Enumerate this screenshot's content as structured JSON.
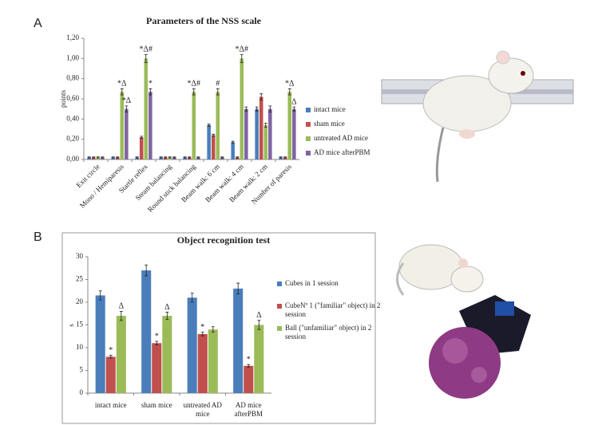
{
  "chart_data": [
    {
      "type": "bar",
      "panel": "A",
      "title": "Parameters of the NSS scale",
      "ylabel": "points",
      "categories": [
        "Exit circle",
        "Mono / Hemiparesis",
        "Startle reflex",
        "Steam balancing",
        "Round stick balancing",
        "Beam walk: 6 cm",
        "Beam walk: 4 cm",
        "Beam walk: 2 cm",
        "Number of paresis"
      ],
      "ylim": [
        0,
        1.2
      ],
      "yticks": [
        {
          "value": 0,
          "label": "0,00"
        },
        {
          "value": 0.2,
          "label": "0,20"
        },
        {
          "value": 0.4,
          "label": "0,40"
        },
        {
          "value": 0.6,
          "label": "0,60"
        },
        {
          "value": 0.8,
          "label": "0,80"
        },
        {
          "value": 1.0,
          "label": "1,00"
        },
        {
          "value": 1.2,
          "label": "1,20"
        }
      ],
      "grid": false,
      "series": [
        {
          "name": "intact mice",
          "color": "#4a7ebb",
          "values": [
            0.02,
            0.02,
            0.02,
            0.02,
            0.02,
            0.34,
            0.17,
            0.5,
            0.02
          ],
          "errors": [
            0.005,
            0.005,
            0.005,
            0.005,
            0.005,
            0.01,
            0.01,
            0.02,
            0.005
          ],
          "markers": [
            null,
            null,
            null,
            null,
            null,
            null,
            null,
            null,
            null
          ]
        },
        {
          "name": "sham mice",
          "color": "#c0504d",
          "values": [
            0.02,
            0.02,
            0.22,
            0.02,
            0.02,
            0.24,
            0.02,
            0.62,
            0.02
          ],
          "errors": [
            0.005,
            0.005,
            0.01,
            0.005,
            0.005,
            0.01,
            0.005,
            0.03,
            0.005
          ],
          "markers": [
            null,
            null,
            null,
            null,
            null,
            null,
            null,
            null,
            null
          ]
        },
        {
          "name": "untreated AD mice",
          "color": "#9bbb59",
          "values": [
            0.02,
            0.67,
            1.0,
            0.02,
            0.67,
            0.67,
            1.0,
            0.34,
            0.67
          ],
          "errors": [
            0.005,
            0.03,
            0.04,
            0.005,
            0.03,
            0.03,
            0.04,
            0.02,
            0.03
          ],
          "markers": [
            null,
            "*Δ",
            "*Δ#",
            null,
            "*Δ#",
            "#",
            "*Δ#",
            null,
            "*Δ"
          ]
        },
        {
          "name": "AD mice afterPBM",
          "color": "#8064a2",
          "values": [
            0.02,
            0.5,
            0.67,
            0.02,
            0.02,
            0.02,
            0.5,
            0.5,
            0.5
          ],
          "errors": [
            0.005,
            0.03,
            0.03,
            0.005,
            0.005,
            0.005,
            0.02,
            0.03,
            0.02
          ],
          "markers": [
            null,
            "*Δ",
            "*",
            null,
            null,
            null,
            null,
            null,
            "Δ"
          ]
        }
      ]
    },
    {
      "type": "bar",
      "panel": "B",
      "title": "Object recognition test",
      "ylabel": "s",
      "categories": [
        "intact mice",
        "sham mice",
        "untreated AD mice",
        "AD mice afterPBM"
      ],
      "ylim": [
        0,
        30
      ],
      "yticks": [
        0,
        5,
        10,
        15,
        20,
        25,
        30
      ],
      "grid": false,
      "series": [
        {
          "name": "Cubes in 1 session",
          "color": "#4a7ebb",
          "values": [
            21.5,
            27,
            21,
            23
          ],
          "errors": [
            1,
            1.2,
            1,
            1.2
          ],
          "markers": [
            null,
            null,
            null,
            null
          ]
        },
        {
          "name": "CubeNº 1 (\"familiar\" object) in 2 session",
          "color": "#c0504d",
          "values": [
            8,
            11,
            13,
            6
          ],
          "errors": [
            0.3,
            0.4,
            0.4,
            0.3
          ],
          "markers": [
            "*",
            "*",
            "*",
            "*"
          ]
        },
        {
          "name": "Ball (\"unfamiliar\" object) in 2 session",
          "color": "#9bbb59",
          "values": [
            17,
            17,
            14,
            15
          ],
          "errors": [
            1,
            0.8,
            0.6,
            1
          ],
          "markers": [
            "Δ",
            "Δ",
            null,
            "Δ"
          ]
        }
      ]
    }
  ]
}
